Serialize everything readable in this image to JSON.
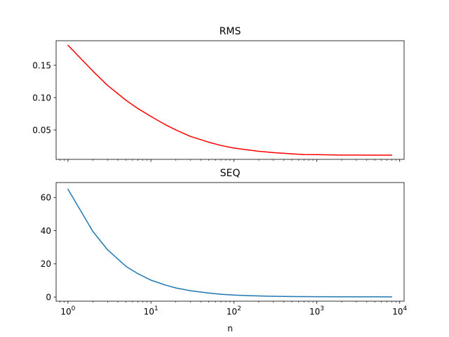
{
  "chart_data": [
    {
      "type": "line",
      "title": "RMS",
      "xlabel": "",
      "ylabel": "",
      "xscale": "log",
      "xlim": [
        0.72,
        11300
      ],
      "ylim": [
        0.0045,
        0.188
      ],
      "x_tick_labels_visible": false,
      "yticks": [
        0.05,
        0.1,
        0.15
      ],
      "ytick_labels": [
        "0.05",
        "0.10",
        "0.15"
      ],
      "color": "#ff0000",
      "x": [
        1,
        2,
        3,
        5,
        7,
        10,
        15,
        20,
        30,
        50,
        70,
        100,
        150,
        200,
        300,
        500,
        700,
        1000,
        2000,
        5000,
        8000
      ],
      "y": [
        0.181,
        0.141,
        0.119,
        0.096,
        0.083,
        0.071,
        0.058,
        0.05,
        0.04,
        0.031,
        0.026,
        0.022,
        0.019,
        0.017,
        0.015,
        0.013,
        0.012,
        0.0118,
        0.0112,
        0.011,
        0.011
      ]
    },
    {
      "type": "line",
      "title": "SEQ",
      "xlabel": "n",
      "ylabel": "",
      "xscale": "log",
      "xlim": [
        0.72,
        11300
      ],
      "ylim": [
        -2.5,
        69
      ],
      "xticks": [
        1,
        10,
        100,
        1000,
        10000
      ],
      "xtick_labels": [
        {
          "base": "10",
          "exp": "0"
        },
        {
          "base": "10",
          "exp": "1"
        },
        {
          "base": "10",
          "exp": "2"
        },
        {
          "base": "10",
          "exp": "3"
        },
        {
          "base": "10",
          "exp": "4"
        }
      ],
      "yticks": [
        0,
        20,
        40,
        60
      ],
      "ytick_labels": [
        "0",
        "20",
        "40",
        "60"
      ],
      "color": "#1f77b4",
      "x": [
        1,
        2,
        3,
        5,
        7,
        10,
        15,
        20,
        30,
        50,
        70,
        100,
        150,
        200,
        300,
        500,
        700,
        1000,
        2000,
        5000,
        8000
      ],
      "y": [
        65.0,
        39.5,
        28.5,
        18.5,
        14.0,
        10.2,
        7.2,
        5.5,
        3.8,
        2.4,
        1.7,
        1.2,
        0.85,
        0.65,
        0.45,
        0.3,
        0.24,
        0.2,
        0.15,
        0.12,
        0.11
      ]
    }
  ]
}
